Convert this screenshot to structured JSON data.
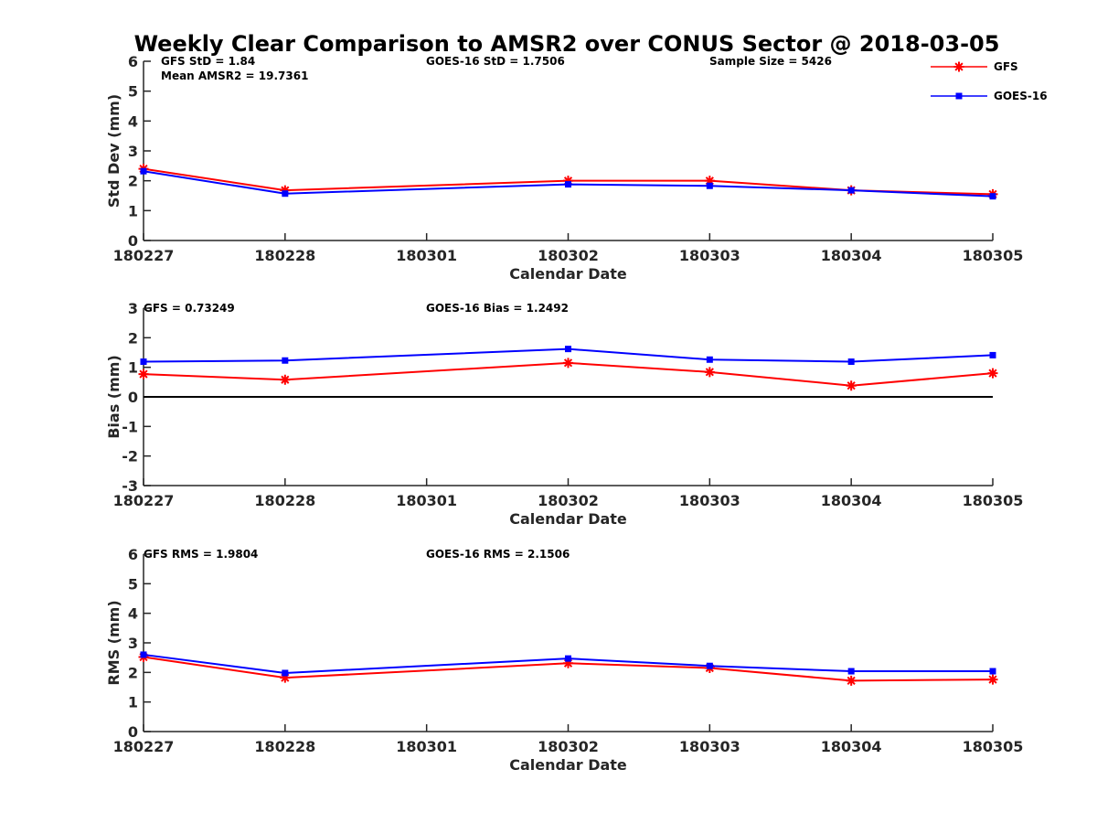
{
  "figure": {
    "title": "Weekly Clear Comparison to AMSR2 over CONUS Sector @ 2018-03-05"
  },
  "legend": {
    "placement": "top-right",
    "entries": [
      {
        "name": "GFS",
        "color": "#ff0000",
        "marker": "asterisk"
      },
      {
        "name": "GOES-16",
        "color": "#0000ff",
        "marker": "square"
      }
    ]
  },
  "chart_data": [
    {
      "type": "line",
      "x": [
        "180227",
        "180228",
        "180301",
        "180302",
        "180303",
        "180304",
        "180305"
      ],
      "xlabel": "Calendar Date",
      "ylabel": "Std Dev (mm)",
      "ylim": [
        0,
        6
      ],
      "yticks": [
        "0",
        "1",
        "2",
        "3",
        "4",
        "5",
        "6"
      ],
      "grid": false,
      "zero_line": false,
      "annotations": [
        "GFS StD = 1.84",
        "Mean AMSR2 = 19.7361",
        "GOES-16 StD = 1.7506",
        "Sample Size = 5426"
      ],
      "series": [
        {
          "name": "GFS",
          "color": "#ff0000",
          "marker": "asterisk",
          "x": [
            "180227",
            "180228",
            "180302",
            "180303",
            "180304",
            "180305"
          ],
          "values": [
            2.4,
            1.68,
            2.0,
            2.0,
            1.68,
            1.55
          ]
        },
        {
          "name": "GOES-16",
          "color": "#0000ff",
          "marker": "square",
          "x": [
            "180227",
            "180228",
            "180302",
            "180303",
            "180304",
            "180305"
          ],
          "values": [
            2.32,
            1.57,
            1.88,
            1.83,
            1.68,
            1.48
          ]
        }
      ]
    },
    {
      "type": "line",
      "x": [
        "180227",
        "180228",
        "180301",
        "180302",
        "180303",
        "180304",
        "180305"
      ],
      "xlabel": "Calendar Date",
      "ylabel": "Bias (mm)",
      "ylim": [
        -3,
        3
      ],
      "yticks": [
        "-3",
        "-2",
        "-1",
        "0",
        "1",
        "2",
        "3"
      ],
      "grid": false,
      "zero_line": true,
      "annotations": [
        "GFS = 0.73249",
        "GOES-16 Bias  = 1.2492"
      ],
      "series": [
        {
          "name": "GFS",
          "color": "#ff0000",
          "marker": "asterisk",
          "x": [
            "180227",
            "180228",
            "180302",
            "180303",
            "180304",
            "180305"
          ],
          "values": [
            0.77,
            0.58,
            1.15,
            0.84,
            0.38,
            0.8
          ]
        },
        {
          "name": "GOES-16",
          "color": "#0000ff",
          "marker": "square",
          "x": [
            "180227",
            "180228",
            "180302",
            "180303",
            "180304",
            "180305"
          ],
          "values": [
            1.19,
            1.23,
            1.62,
            1.26,
            1.19,
            1.41
          ]
        }
      ]
    },
    {
      "type": "line",
      "x": [
        "180227",
        "180228",
        "180301",
        "180302",
        "180303",
        "180304",
        "180305"
      ],
      "xlabel": "Calendar Date",
      "ylabel": "RMS (mm)",
      "ylim": [
        0,
        6
      ],
      "yticks": [
        "0",
        "1",
        "2",
        "3",
        "4",
        "5",
        "6"
      ],
      "grid": false,
      "zero_line": false,
      "annotations": [
        "GFS RMS = 1.9804",
        "GOES-16 RMS = 2.1506"
      ],
      "series": [
        {
          "name": "GFS",
          "color": "#ff0000",
          "marker": "asterisk",
          "x": [
            "180227",
            "180228",
            "180302",
            "180303",
            "180304",
            "180305"
          ],
          "values": [
            2.52,
            1.82,
            2.31,
            2.15,
            1.72,
            1.76
          ]
        },
        {
          "name": "GOES-16",
          "color": "#0000ff",
          "marker": "square",
          "x": [
            "180227",
            "180228",
            "180302",
            "180303",
            "180304",
            "180305"
          ],
          "values": [
            2.6,
            1.98,
            2.47,
            2.22,
            2.04,
            2.04
          ]
        }
      ]
    }
  ]
}
